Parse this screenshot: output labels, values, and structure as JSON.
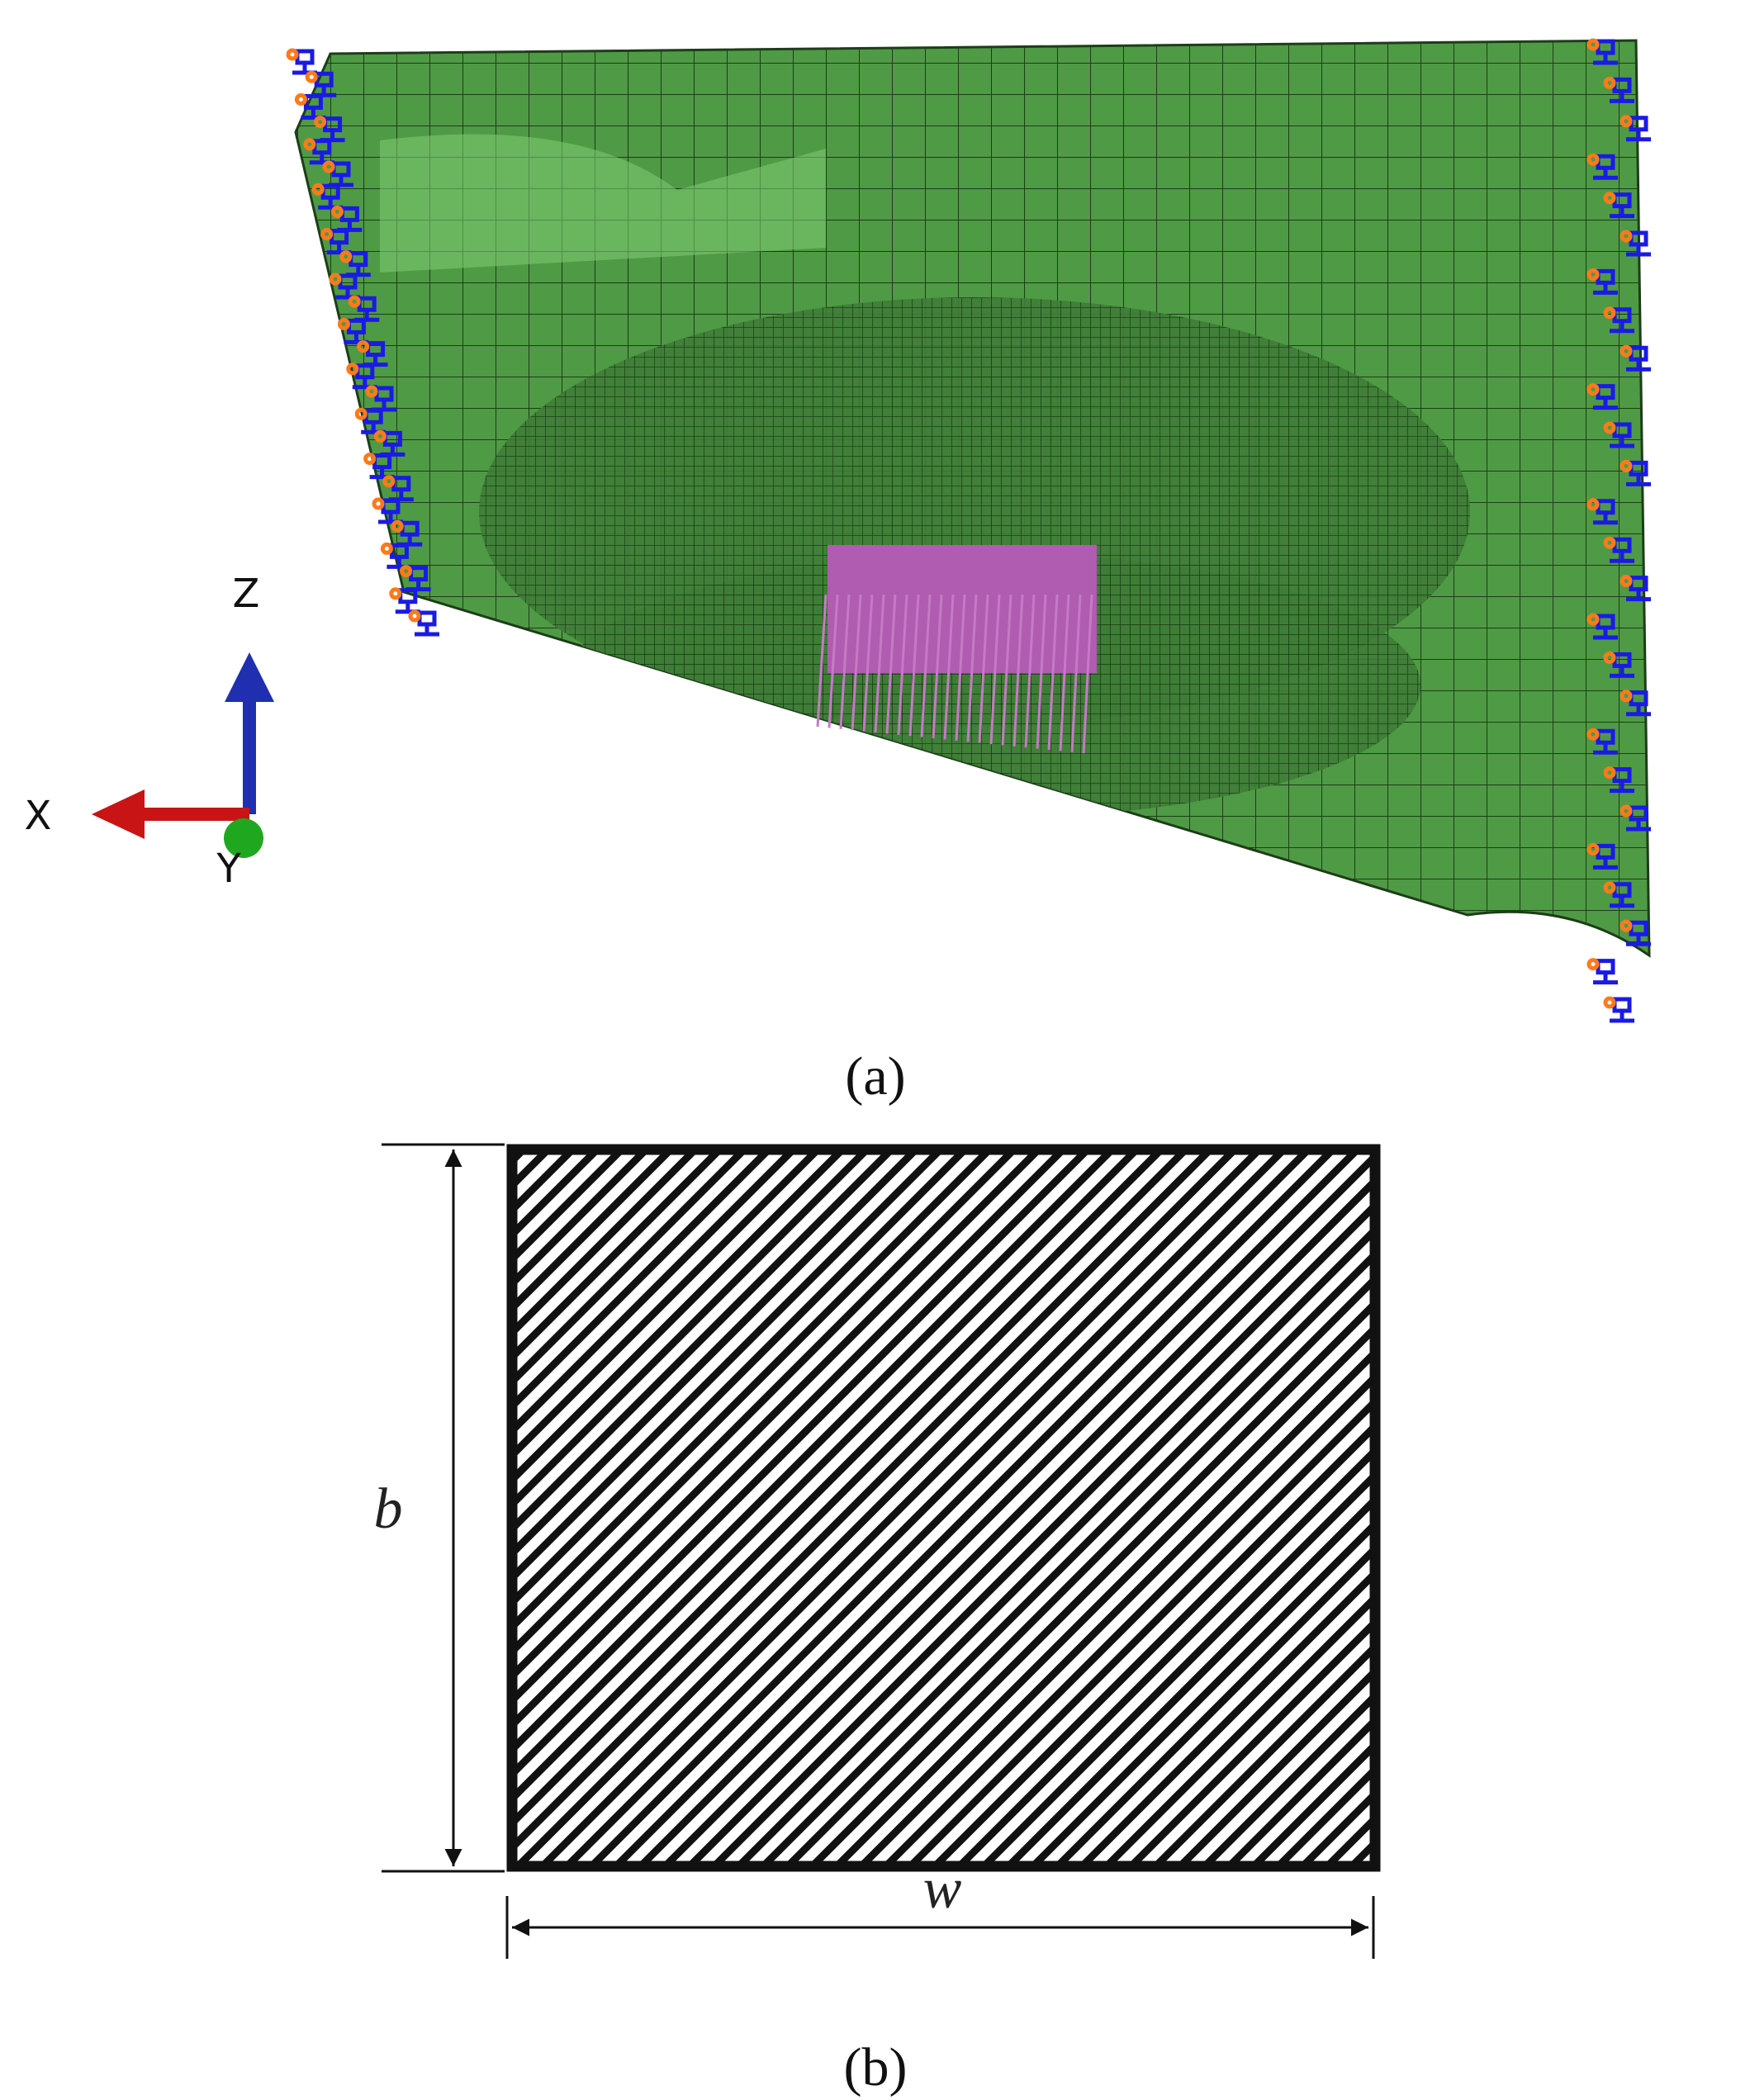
{
  "panel_a": {
    "axes": {
      "z": "Z",
      "x": "X",
      "y": "Y"
    },
    "caption": "(a)"
  },
  "panel_b": {
    "height_label": "b",
    "width_label": "w",
    "caption": "(b)"
  }
}
